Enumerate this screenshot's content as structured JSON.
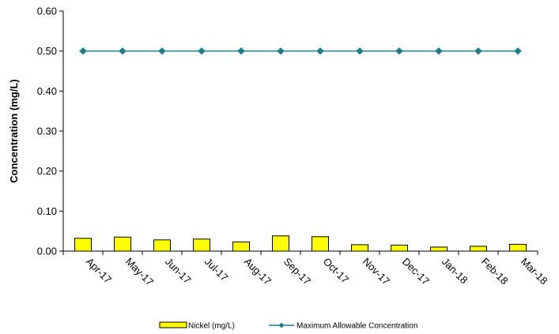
{
  "chart_data": {
    "type": "bar",
    "categories": [
      "Apr-17",
      "May-17",
      "Jun-17",
      "Jul-17",
      "Aug-17",
      "Sep-17",
      "Oct-17",
      "Nov-17",
      "Dec-17",
      "Jan-18",
      "Feb-18",
      "Mar-18"
    ],
    "series": [
      {
        "name": "Nickel (mg/L)",
        "type": "bar",
        "color": "#FFFF00",
        "values": [
          0.032,
          0.035,
          0.028,
          0.03,
          0.023,
          0.038,
          0.036,
          0.016,
          0.015,
          0.01,
          0.012,
          0.017
        ]
      },
      {
        "name": "Maximum Allowable Concentration",
        "type": "line",
        "color": "#1F7C8C",
        "values": [
          0.5,
          0.5,
          0.5,
          0.5,
          0.5,
          0.5,
          0.5,
          0.5,
          0.5,
          0.5,
          0.5,
          0.5
        ]
      }
    ],
    "ylabel": "Concentration (mg/L)",
    "xlabel": "",
    "ylim": [
      0,
      0.6
    ],
    "yticks": [
      "0.00",
      "0.10",
      "0.20",
      "0.30",
      "0.40",
      "0.50",
      "0.60"
    ],
    "grid": false,
    "legend_position": "bottom"
  }
}
